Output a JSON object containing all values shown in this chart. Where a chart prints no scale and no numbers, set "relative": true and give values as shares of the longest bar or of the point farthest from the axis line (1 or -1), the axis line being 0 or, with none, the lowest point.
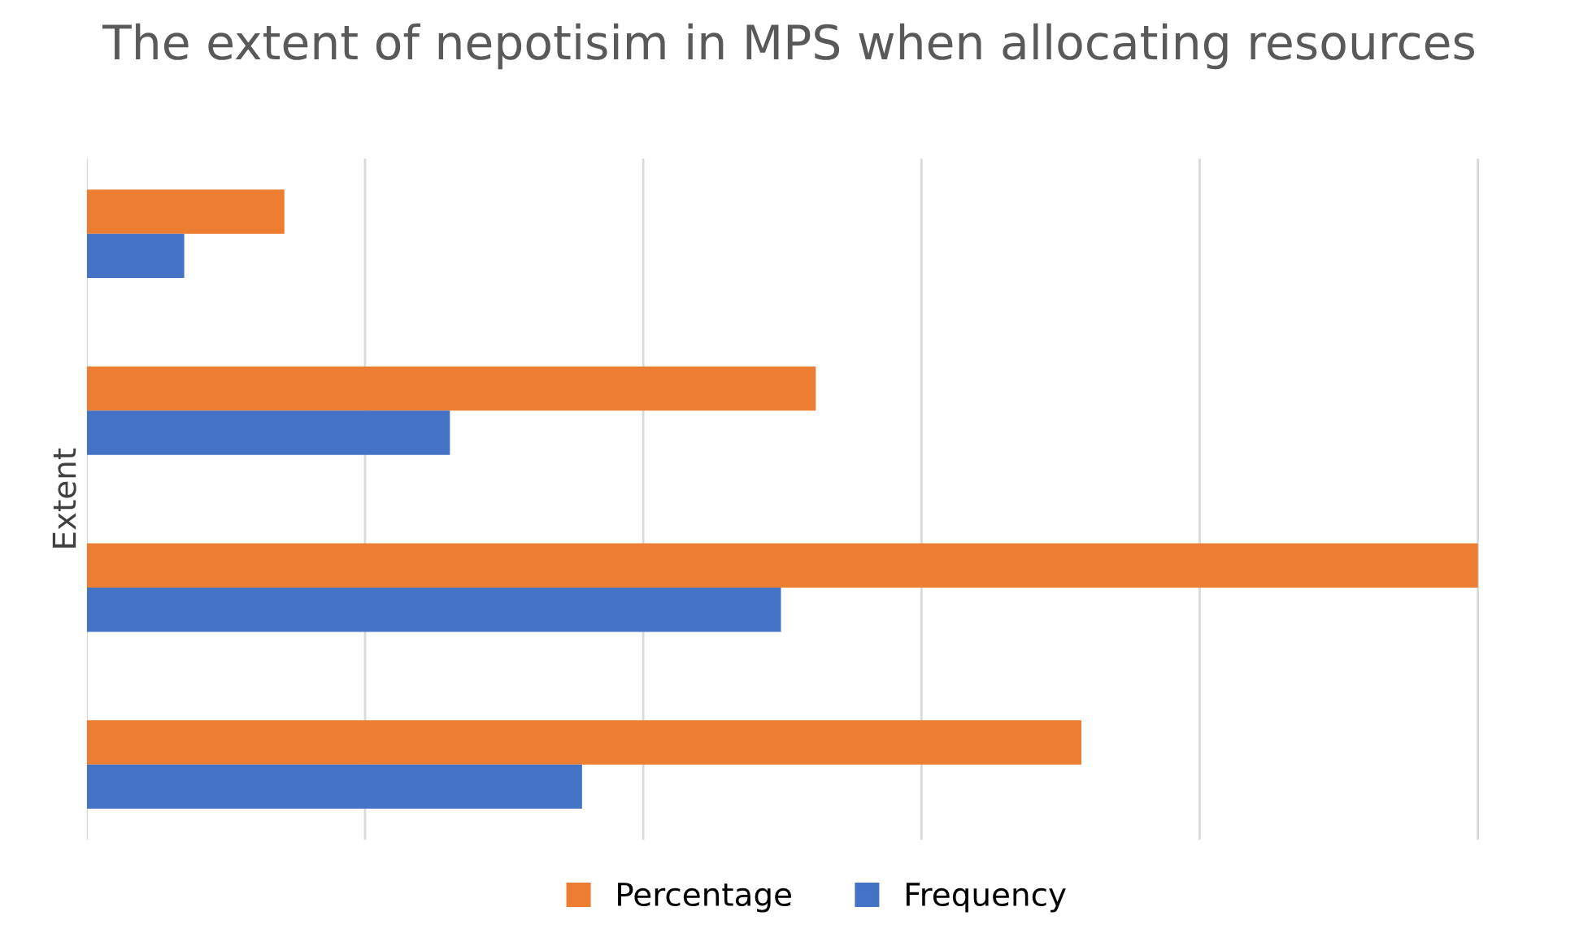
{
  "chart_data": {
    "type": "bar",
    "orientation": "horizontal",
    "relative": true,
    "title": "The extent of nepotisim in MPS when allocating resources",
    "ylabel": "Extent",
    "categories": [
      null,
      null,
      null,
      null
    ],
    "series": [
      {
        "name": "Percentage",
        "color": "#ed7d31",
        "values": [
          0.142,
          0.524,
          1,
          0.715
        ]
      },
      {
        "name": "Frequency",
        "color": "#4472c4",
        "values": [
          0.07,
          0.261,
          0.499,
          0.356
        ]
      }
    ],
    "grid": "x",
    "legend": "bottom",
    "tick_labels": false
  }
}
